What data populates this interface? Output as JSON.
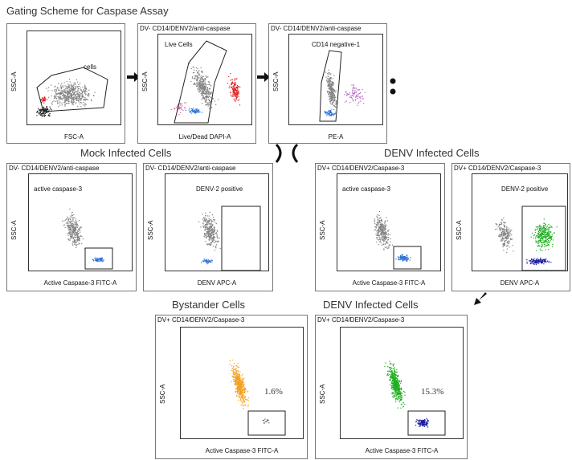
{
  "title": "Gating Scheme for Caspase Assay",
  "headers": {
    "mock": "Mock Infected Cells",
    "denv_top": "DENV Infected Cells",
    "bystander": "Bystander Cells",
    "denv_bottom": "DENV Infected Cells"
  },
  "panels": {
    "p1": {
      "gate": "cells",
      "xlabel": "FSC-A",
      "ylabel": "SSC-A"
    },
    "p2": {
      "title": "DV- CD14/DENV2/anti-caspase",
      "gate": "Live Cells",
      "xlabel": "Live/Dead DAPI-A",
      "ylabel": "SSC-A"
    },
    "p3": {
      "title": "DV- CD14/DENV2/anti-caspase",
      "gate": "CD14 negative-1",
      "xlabel": "PE-A",
      "ylabel": "SSC-A"
    },
    "m1": {
      "title": "DV- CD14/DENV2/anti-caspase",
      "gate": "active caspase-3",
      "xlabel": "Active Caspase-3 FITC-A",
      "ylabel": "SSC-A"
    },
    "m2": {
      "title": "DV- CD14/DENV2/anti-caspase",
      "gate": "DENV-2 positive",
      "xlabel": "DENV APC-A",
      "ylabel": "SSC-A"
    },
    "d1": {
      "title": "DV+ CD14/DENV2/Caspase-3",
      "gate": "active caspase-3",
      "xlabel": "Active Caspase-3 FITC-A",
      "ylabel": "SSC-A"
    },
    "d2": {
      "title": "DV+ CD14/DENV2/Caspase-3",
      "gate": "DENV-2 positive",
      "xlabel": "DENV APC-A",
      "ylabel": "SSC-A"
    },
    "b1": {
      "title": "DV+ CD14/DENV2/Caspase-3",
      "pct": "1.6%",
      "xlabel": "Active Caspase-3 FITC-A",
      "ylabel": "SSC-A"
    },
    "b2": {
      "title": "DV+ CD14/DENV2/Caspase-3",
      "pct": "15.3%",
      "xlabel": "Active Caspase-3 FITC-A",
      "ylabel": "SSC-A"
    }
  },
  "colors": {
    "gray_cells": "#808080",
    "red_cells": "#e02020",
    "blue_cells": "#2a6fd6",
    "purple_cells": "#b060c0",
    "green_cells": "#1fae1f",
    "navy_cells": "#1a1aa0",
    "orange_cells": "#f5a020"
  }
}
